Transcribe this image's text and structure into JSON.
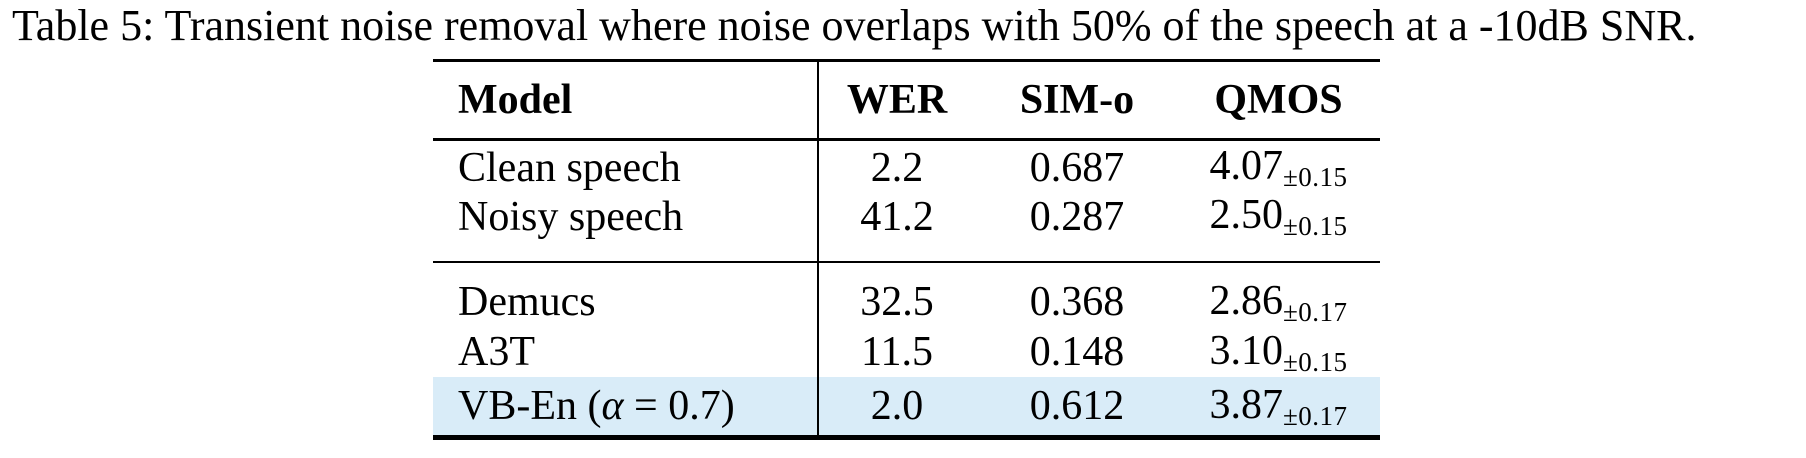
{
  "caption": "Table 5: Transient noise removal where noise overlaps with 50% of the speech at a -10dB SNR.",
  "colors": {
    "background": "#ffffff",
    "text": "#000000",
    "highlight_row": "#d9ecf8",
    "rules": "#000000"
  },
  "table": {
    "headers": {
      "model": "Model",
      "wer": "WER",
      "sim_o": "SIM-o",
      "qmos": "QMOS"
    },
    "rows": [
      {
        "model_pre": "Clean speech",
        "model_italic": "",
        "model_post": "",
        "wer": "2.2",
        "sim_o": "0.687",
        "qmos_mean": "4.07",
        "qmos_pm": "±0.15",
        "highlight": false
      },
      {
        "model_pre": "Noisy speech",
        "model_italic": "",
        "model_post": "",
        "wer": "41.2",
        "sim_o": "0.287",
        "qmos_mean": "2.50",
        "qmos_pm": "±0.15",
        "highlight": false
      },
      {
        "model_pre": "Demucs",
        "model_italic": "",
        "model_post": "",
        "wer": "32.5",
        "sim_o": "0.368",
        "qmos_mean": "2.86",
        "qmos_pm": "±0.17",
        "highlight": false
      },
      {
        "model_pre": "A3T",
        "model_italic": "",
        "model_post": "",
        "wer": "11.5",
        "sim_o": "0.148",
        "qmos_mean": "3.10",
        "qmos_pm": "±0.15",
        "highlight": false
      },
      {
        "model_pre": "VB-En (",
        "model_italic": "α",
        "model_post": " = 0.7)",
        "wer": "2.0",
        "sim_o": "0.612",
        "qmos_mean": "3.87",
        "qmos_pm": "±0.17",
        "highlight": true
      }
    ]
  }
}
